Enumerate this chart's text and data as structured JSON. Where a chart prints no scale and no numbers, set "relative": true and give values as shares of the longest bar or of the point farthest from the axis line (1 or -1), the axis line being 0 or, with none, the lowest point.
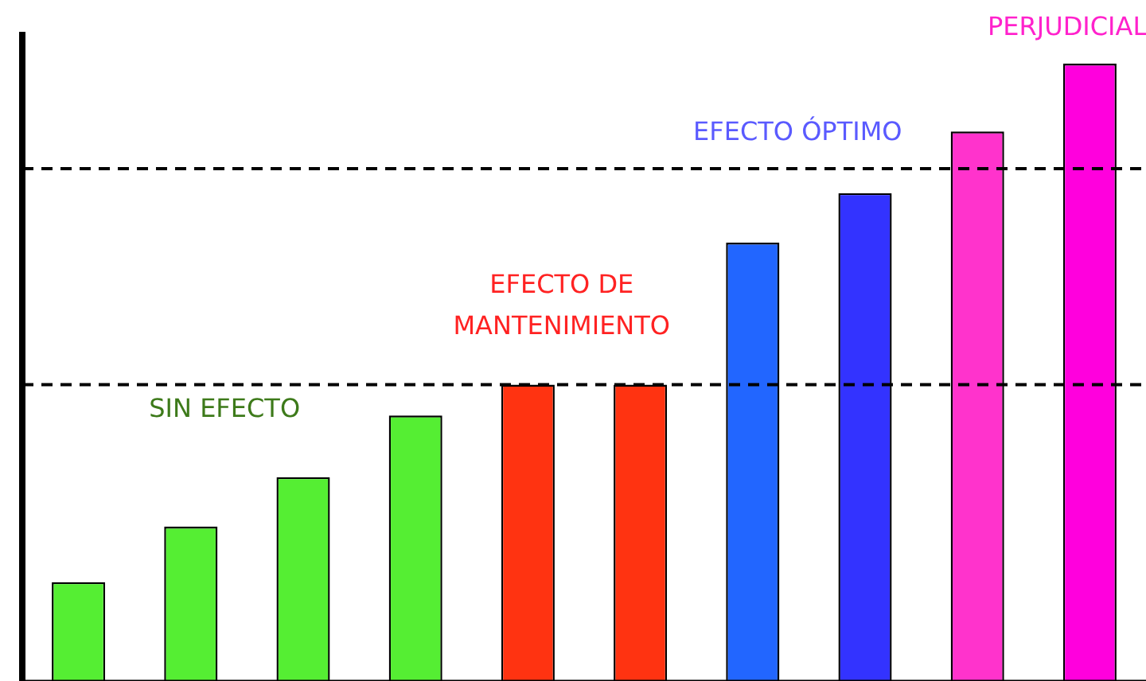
{
  "chart_data": {
    "type": "bar",
    "relative": true,
    "categories": [
      null,
      null,
      null,
      null,
      null,
      null,
      null,
      null,
      null,
      null
    ],
    "values": [
      0.16,
      0.25,
      0.33,
      0.43,
      0.48,
      0.48,
      0.71,
      0.79,
      0.89,
      1
    ],
    "colors": [
      "#55ee33",
      "#55ee33",
      "#55ee33",
      "#55ee33",
      "#ff3311",
      "#ff3311",
      "#2266ff",
      "#3333ff",
      "#ff33cc",
      "#ff00dd"
    ],
    "ref_lines": [
      {
        "axis": "y",
        "value": 0.48,
        "line_style": "dashed",
        "color": "#000000"
      },
      {
        "axis": "y",
        "value": 0.83,
        "line_style": "dashed",
        "color": "#000000"
      }
    ],
    "annotations": [
      "SIN EFECTO",
      "EFECTO DE MANTENIMIENTO",
      "EFECTO ÓPTIMO",
      "PERJUDICIAL"
    ],
    "grid": false,
    "legend": false
  }
}
